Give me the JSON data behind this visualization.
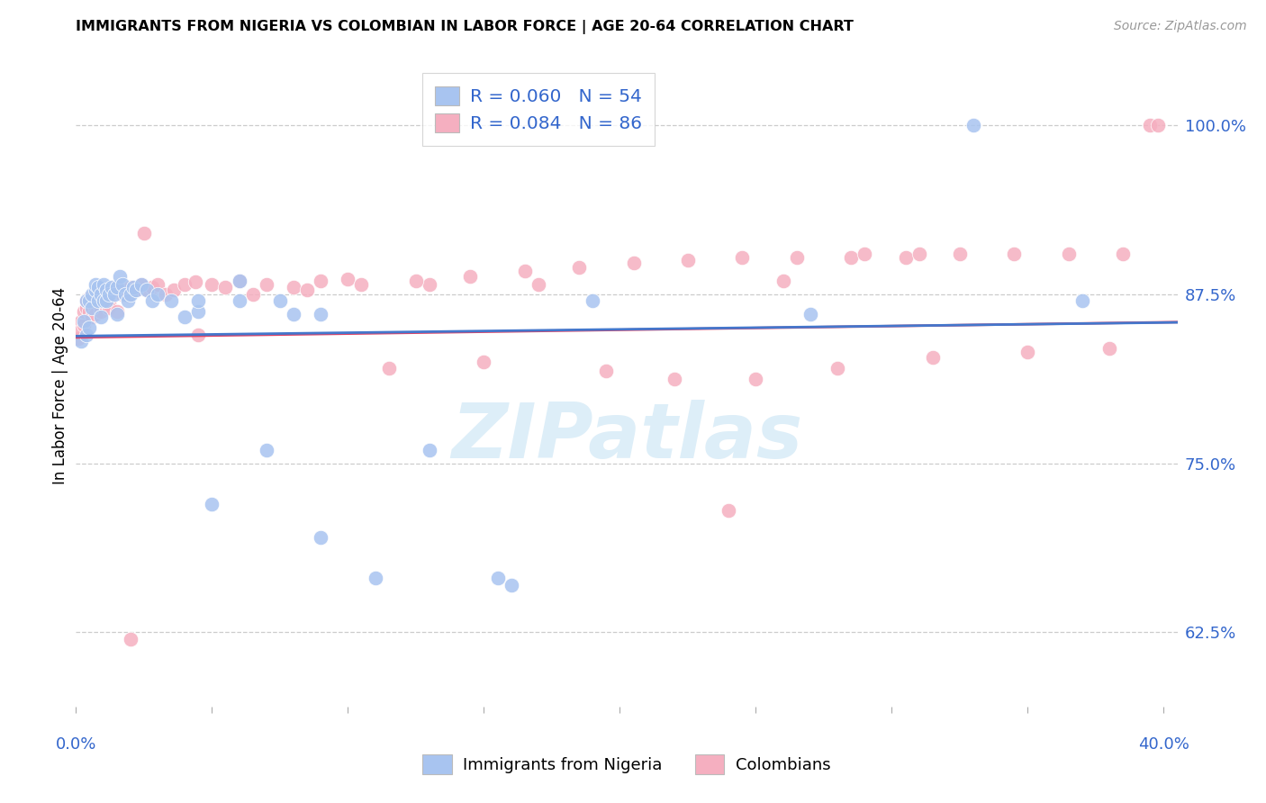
{
  "title": "IMMIGRANTS FROM NIGERIA VS COLOMBIAN IN LABOR FORCE | AGE 20-64 CORRELATION CHART",
  "source": "Source: ZipAtlas.com",
  "ylabel": "In Labor Force | Age 20-64",
  "yticks_pct": [
    62.5,
    75.0,
    87.5,
    100.0
  ],
  "ytick_labels": [
    "62.5%",
    "75.0%",
    "87.5%",
    "100.0%"
  ],
  "xtick_positions": [
    0.0,
    0.05,
    0.1,
    0.15,
    0.2,
    0.25,
    0.3,
    0.35,
    0.4
  ],
  "xlim": [
    0.0,
    0.405
  ],
  "ylim": [
    0.57,
    1.045
  ],
  "nigeria_color": "#a8c4f0",
  "colombia_color": "#f5afc0",
  "nigeria_line_color": "#4477cc",
  "colombia_line_color": "#dd4466",
  "watermark_color": "#ddeef8",
  "watermark_text": "ZIPatlas",
  "axis_tick_color": "#3366cc",
  "grid_color": "#cccccc",
  "nigeria_R": 0.06,
  "nigeria_N": 54,
  "colombia_R": 0.084,
  "colombia_N": 86,
  "legend_R_labels": [
    "R = 0.060   N = 54",
    "R = 0.084   N = 86"
  ],
  "bottom_legend_labels": [
    "Immigrants from Nigeria",
    "Colombians"
  ],
  "nigeria_x": [
    0.002,
    0.003,
    0.004,
    0.004,
    0.005,
    0.005,
    0.006,
    0.006,
    0.007,
    0.007,
    0.008,
    0.008,
    0.009,
    0.009,
    0.01,
    0.01,
    0.011,
    0.011,
    0.012,
    0.013,
    0.014,
    0.015,
    0.015,
    0.016,
    0.017,
    0.018,
    0.019,
    0.02,
    0.021,
    0.022,
    0.024,
    0.026,
    0.028,
    0.03,
    0.035,
    0.04,
    0.045,
    0.05,
    0.06,
    0.07,
    0.08,
    0.09,
    0.11,
    0.13,
    0.155,
    0.06,
    0.075,
    0.16,
    0.27,
    0.33,
    0.37,
    0.19,
    0.09,
    0.045
  ],
  "nigeria_y": [
    0.84,
    0.855,
    0.845,
    0.87,
    0.85,
    0.87,
    0.865,
    0.875,
    0.878,
    0.882,
    0.87,
    0.88,
    0.875,
    0.858,
    0.87,
    0.882,
    0.878,
    0.87,
    0.875,
    0.88,
    0.875,
    0.88,
    0.86,
    0.888,
    0.882,
    0.875,
    0.87,
    0.875,
    0.88,
    0.878,
    0.882,
    0.878,
    0.87,
    0.875,
    0.87,
    0.858,
    0.862,
    0.72,
    0.87,
    0.76,
    0.86,
    0.695,
    0.665,
    0.76,
    0.665,
    0.885,
    0.87,
    0.66,
    0.86,
    1.0,
    0.87,
    0.87,
    0.86,
    0.87
  ],
  "colombia_x": [
    0.001,
    0.002,
    0.002,
    0.003,
    0.003,
    0.004,
    0.004,
    0.005,
    0.005,
    0.006,
    0.006,
    0.007,
    0.007,
    0.008,
    0.008,
    0.009,
    0.009,
    0.01,
    0.01,
    0.011,
    0.011,
    0.012,
    0.012,
    0.013,
    0.014,
    0.015,
    0.015,
    0.016,
    0.017,
    0.018,
    0.019,
    0.02,
    0.021,
    0.022,
    0.024,
    0.026,
    0.028,
    0.03,
    0.033,
    0.036,
    0.04,
    0.044,
    0.05,
    0.055,
    0.06,
    0.07,
    0.08,
    0.09,
    0.1,
    0.115,
    0.13,
    0.15,
    0.17,
    0.195,
    0.22,
    0.25,
    0.28,
    0.315,
    0.35,
    0.38,
    0.395,
    0.398,
    0.025,
    0.045,
    0.065,
    0.085,
    0.105,
    0.125,
    0.145,
    0.165,
    0.185,
    0.205,
    0.225,
    0.245,
    0.265,
    0.285,
    0.305,
    0.325,
    0.345,
    0.365,
    0.385,
    0.24,
    0.26,
    0.02,
    0.29,
    0.31
  ],
  "colombia_y": [
    0.842,
    0.855,
    0.848,
    0.852,
    0.862,
    0.865,
    0.87,
    0.862,
    0.872,
    0.858,
    0.872,
    0.865,
    0.86,
    0.868,
    0.876,
    0.872,
    0.862,
    0.868,
    0.878,
    0.872,
    0.878,
    0.868,
    0.865,
    0.878,
    0.88,
    0.878,
    0.862,
    0.878,
    0.875,
    0.878,
    0.874,
    0.88,
    0.878,
    0.878,
    0.882,
    0.878,
    0.88,
    0.882,
    0.875,
    0.878,
    0.882,
    0.884,
    0.882,
    0.88,
    0.885,
    0.882,
    0.88,
    0.885,
    0.886,
    0.82,
    0.882,
    0.825,
    0.882,
    0.818,
    0.812,
    0.812,
    0.82,
    0.828,
    0.832,
    0.835,
    1.0,
    1.0,
    0.92,
    0.845,
    0.875,
    0.878,
    0.882,
    0.885,
    0.888,
    0.892,
    0.895,
    0.898,
    0.9,
    0.902,
    0.902,
    0.902,
    0.902,
    0.905,
    0.905,
    0.905,
    0.905,
    0.715,
    0.885,
    0.62,
    0.905,
    0.905
  ]
}
